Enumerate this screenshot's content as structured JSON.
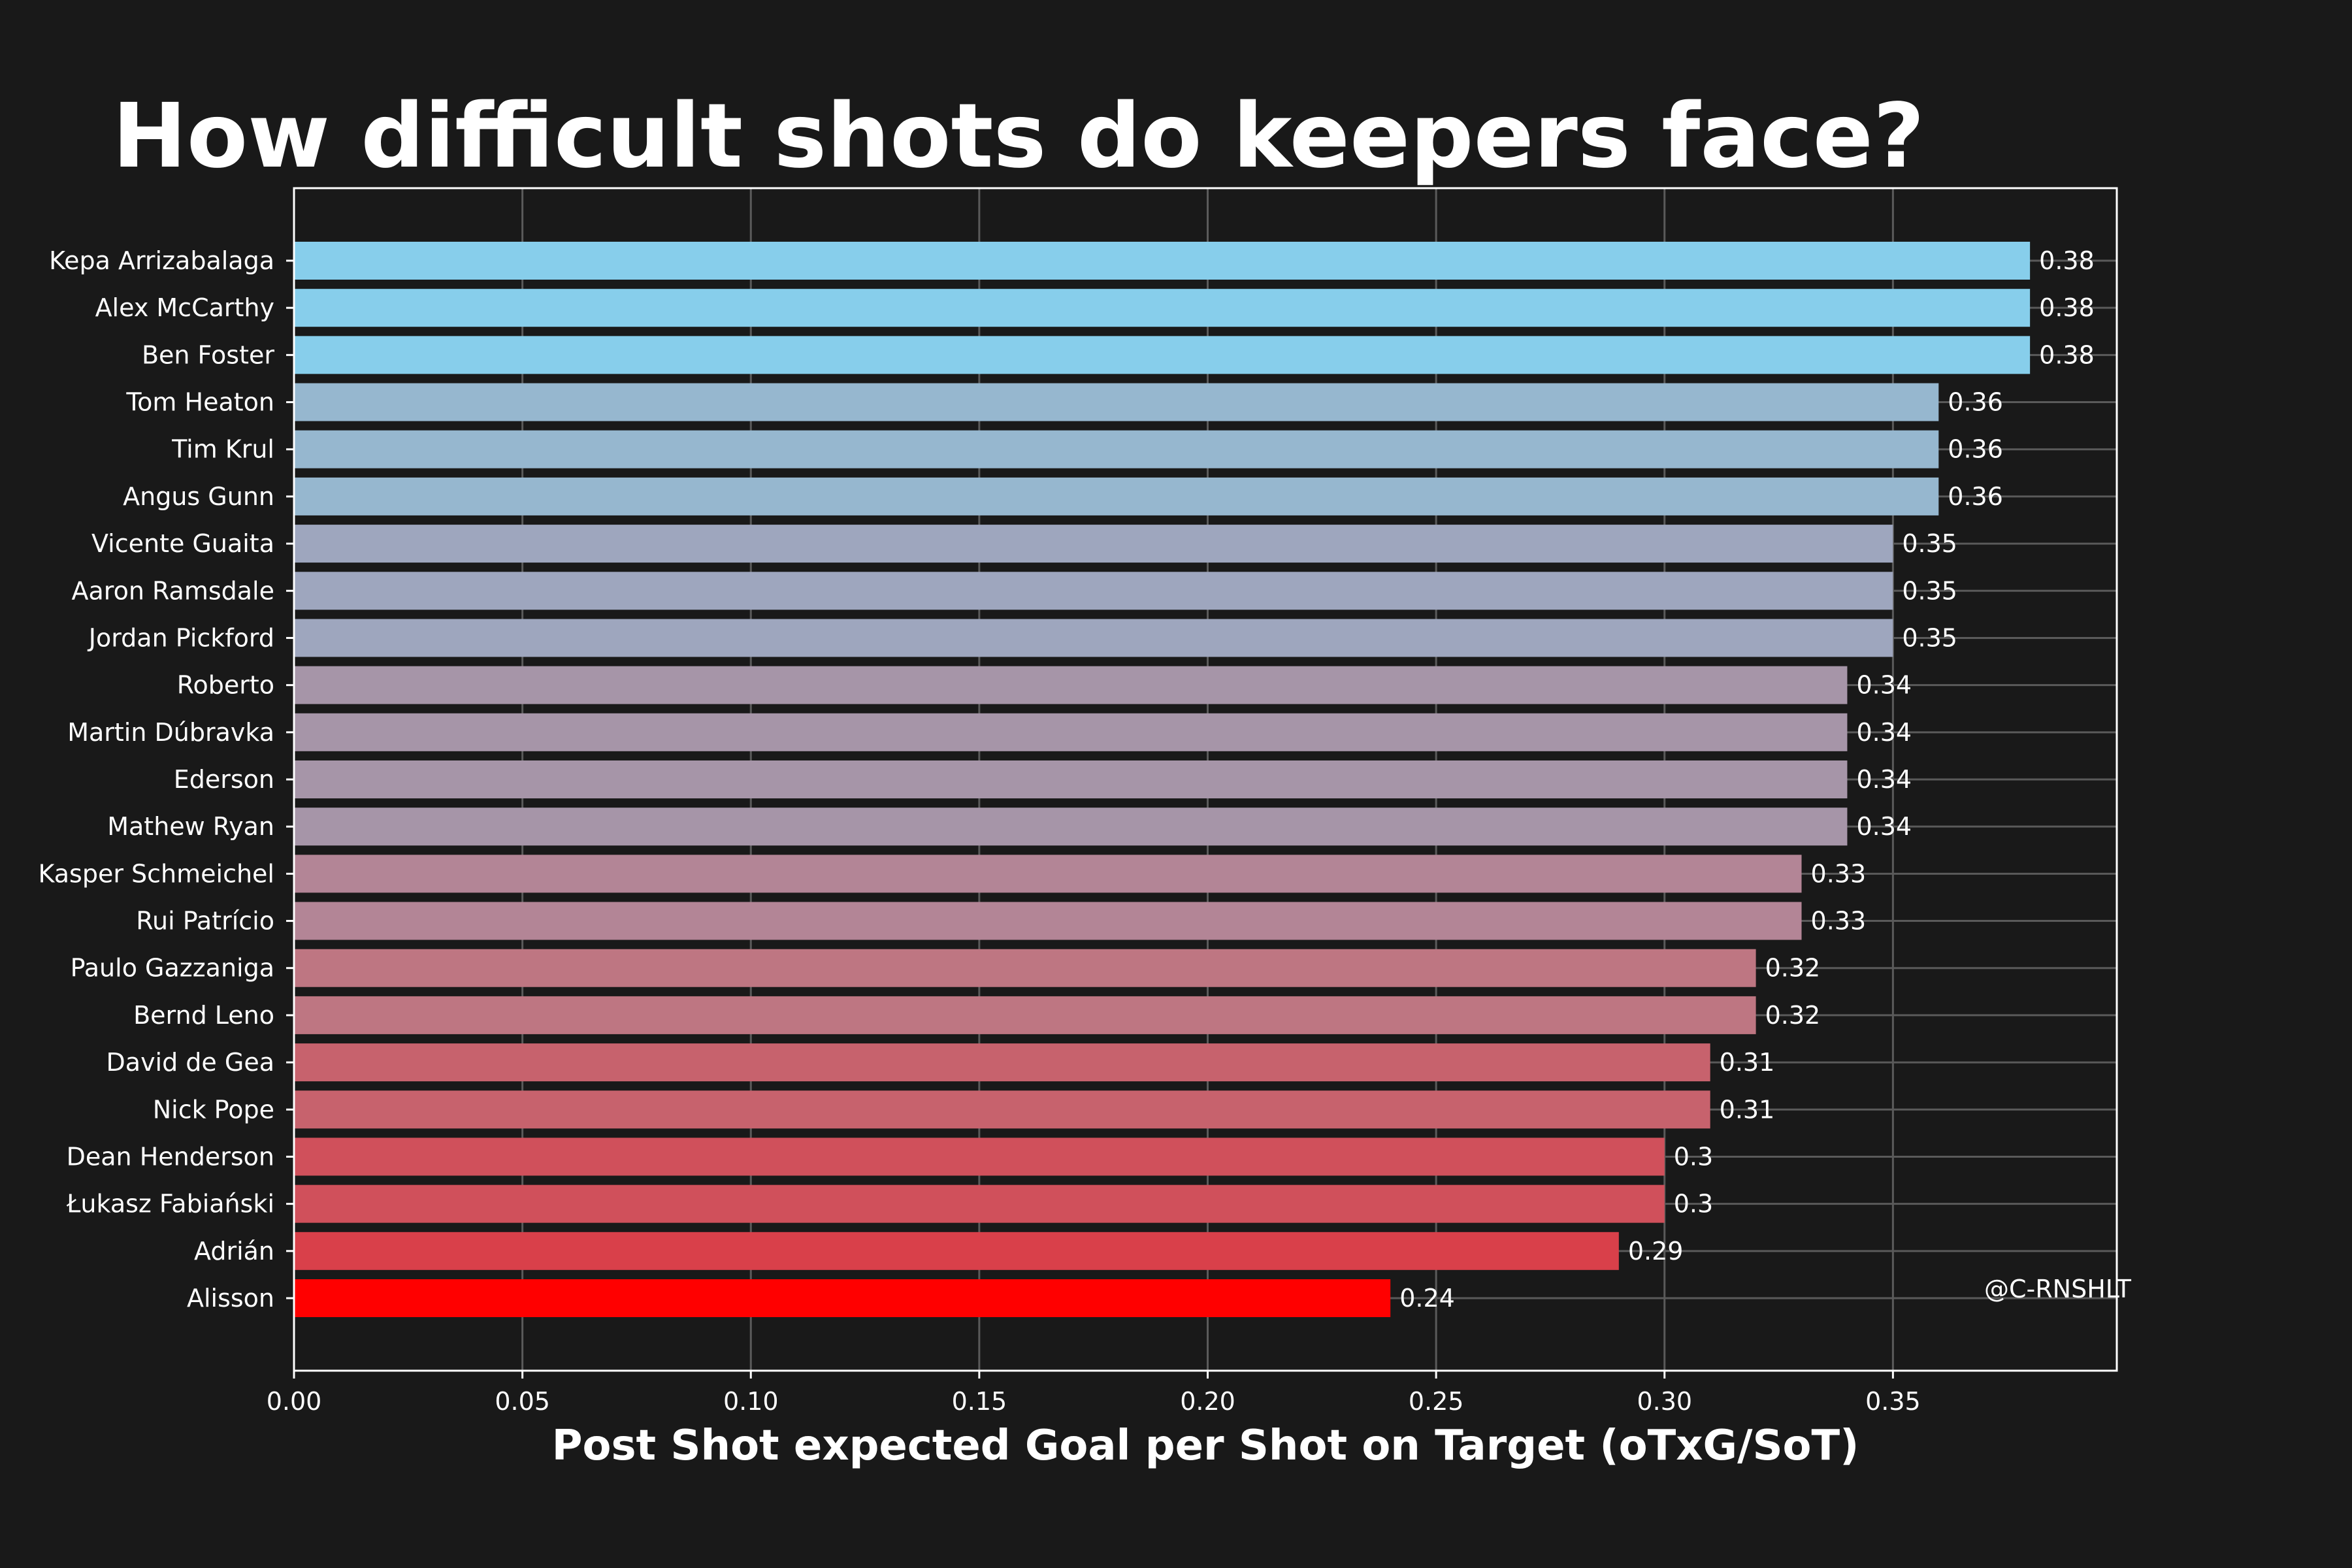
{
  "title": "How difficult shots do keepers face?",
  "watermark": "@C-RNSHLT",
  "chart_data": {
    "type": "bar",
    "orientation": "horizontal",
    "title": "How difficult shots do keepers face?",
    "xlabel": "Post Shot expected Goal per Shot on Target (oTxG/SoT)",
    "ylabel": "",
    "xlim": [
      0,
      0.399
    ],
    "xticks": [
      0.0,
      0.05,
      0.1,
      0.15,
      0.2,
      0.25,
      0.3,
      0.35
    ],
    "xtick_labels": [
      "0.00",
      "0.05",
      "0.10",
      "0.15",
      "0.20",
      "0.25",
      "0.30",
      "0.35"
    ],
    "grid": true,
    "colors": {
      "background": "#191919",
      "high": "#87CEEB",
      "low": "#FF0000",
      "grid": "#5a5a5a",
      "axis": "#ffffff"
    },
    "bars": [
      {
        "label": "Kepa Arrizabalaga",
        "value": 0.38,
        "value_label": "0.38",
        "color": "#87CEEB"
      },
      {
        "label": "Alex McCarthy",
        "value": 0.38,
        "value_label": "0.38",
        "color": "#87CEEB"
      },
      {
        "label": "Ben Foster",
        "value": 0.38,
        "value_label": "0.38",
        "color": "#87CEEB"
      },
      {
        "label": "Tom Heaton",
        "value": 0.36,
        "value_label": "0.36",
        "color": "#96B7CF"
      },
      {
        "label": "Tim Krul",
        "value": 0.36,
        "value_label": "0.36",
        "color": "#96B7CF"
      },
      {
        "label": "Angus Gunn",
        "value": 0.36,
        "value_label": "0.36",
        "color": "#96B7CF"
      },
      {
        "label": "Vicente Guaita",
        "value": 0.35,
        "value_label": "0.35",
        "color": "#9EA6BE"
      },
      {
        "label": "Aaron Ramsdale",
        "value": 0.35,
        "value_label": "0.35",
        "color": "#9EA6BE"
      },
      {
        "label": "Jordan Pickford",
        "value": 0.35,
        "value_label": "0.35",
        "color": "#9EA6BE"
      },
      {
        "label": "Roberto",
        "value": 0.34,
        "value_label": "0.34",
        "color": "#A695A8"
      },
      {
        "label": "Martin Dúbravka",
        "value": 0.34,
        "value_label": "0.34",
        "color": "#A695A8"
      },
      {
        "label": "Ederson",
        "value": 0.34,
        "value_label": "0.34",
        "color": "#A695A8"
      },
      {
        "label": "Mathew Ryan",
        "value": 0.34,
        "value_label": "0.34",
        "color": "#A695A8"
      },
      {
        "label": "Kasper Schmeichel",
        "value": 0.33,
        "value_label": "0.33",
        "color": "#B38596"
      },
      {
        "label": "Rui Patrício",
        "value": 0.33,
        "value_label": "0.33",
        "color": "#B38596"
      },
      {
        "label": "Paulo Gazzaniga",
        "value": 0.32,
        "value_label": "0.32",
        "color": "#BE7682"
      },
      {
        "label": "Bernd Leno",
        "value": 0.32,
        "value_label": "0.32",
        "color": "#BE7682"
      },
      {
        "label": "David de Gea",
        "value": 0.31,
        "value_label": "0.31",
        "color": "#C7626D"
      },
      {
        "label": "Nick Pope",
        "value": 0.31,
        "value_label": "0.31",
        "color": "#C7626D"
      },
      {
        "label": "Dean Henderson",
        "value": 0.3,
        "value_label": "0.3",
        "color": "#D0505B"
      },
      {
        "label": "Łukasz Fabiański",
        "value": 0.3,
        "value_label": "0.3",
        "color": "#D0505B"
      },
      {
        "label": "Adrián",
        "value": 0.29,
        "value_label": "0.29",
        "color": "#D9404A"
      },
      {
        "label": "Alisson",
        "value": 0.24,
        "value_label": "0.24",
        "color": "#FF0000"
      }
    ]
  }
}
